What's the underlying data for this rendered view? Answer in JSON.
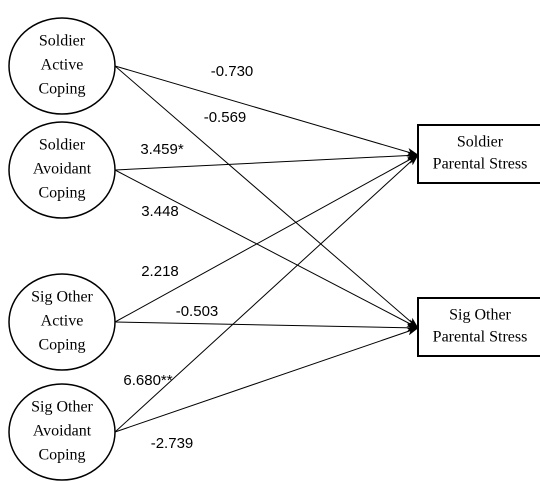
{
  "nodes": [
    {
      "lines": [
        "Soldier",
        "Active",
        "Coping"
      ]
    },
    {
      "lines": [
        "Soldier",
        "Avoidant",
        "Coping"
      ]
    },
    {
      "lines": [
        "Sig Other",
        "Active",
        "Coping"
      ]
    },
    {
      "lines": [
        "Sig Other",
        "Avoidant",
        "Coping"
      ]
    }
  ],
  "outcomes": [
    {
      "lines": [
        "Soldier",
        "Parental Stress"
      ]
    },
    {
      "lines": [
        "Sig Other",
        "Parental Stress"
      ]
    }
  ],
  "paths": [
    {
      "label": "-0.730"
    },
    {
      "label": "-0.569"
    },
    {
      "label": "3.459*"
    },
    {
      "label": "3.448"
    },
    {
      "label": "2.218"
    },
    {
      "label": "-0.503"
    },
    {
      "label": "6.680**"
    },
    {
      "label": "-2.739"
    }
  ]
}
